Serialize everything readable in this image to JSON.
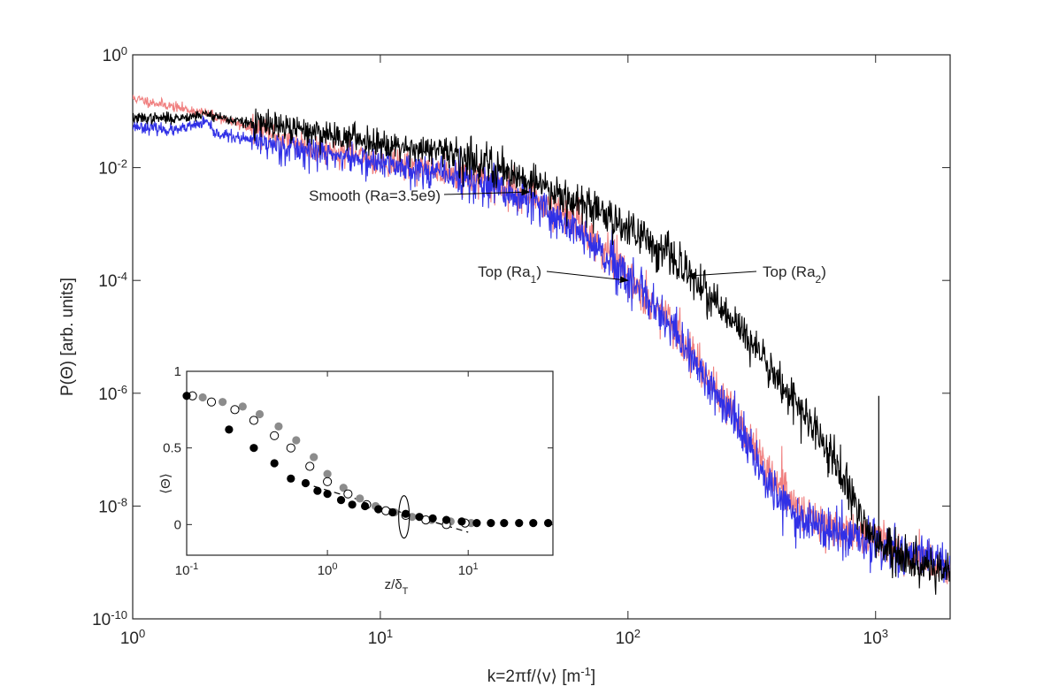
{
  "chart_data": [
    {
      "type": "line",
      "x_scale": "log",
      "y_scale": "log",
      "xlim": [
        1,
        2000
      ],
      "ylim": [
        1e-10,
        1
      ],
      "xlabel": "k=2πf/⟨v⟩ [m",
      "xlabel_sup": "-1",
      "xlabel_tail": "]",
      "ylabel": "P(Θ) [arb. units]",
      "x_ticks": [
        {
          "value": 1,
          "base": "10",
          "exp": "0"
        },
        {
          "value": 10,
          "base": "10",
          "exp": "1"
        },
        {
          "value": 100,
          "base": "10",
          "exp": "2"
        },
        {
          "value": 1000,
          "base": "10",
          "exp": "3"
        }
      ],
      "y_ticks": [
        {
          "value": 1e-10,
          "base": "10",
          "exp": "-10"
        },
        {
          "value": 1e-08,
          "base": "10",
          "exp": "-8"
        },
        {
          "value": 1e-06,
          "base": "10",
          "exp": "-6"
        },
        {
          "value": 0.0001,
          "base": "10",
          "exp": "-4"
        },
        {
          "value": 0.01,
          "base": "10",
          "exp": "-2"
        },
        {
          "value": 1,
          "base": "10",
          "exp": "0"
        }
      ],
      "series": [
        {
          "name": "Smooth (Ra=3.5e9)",
          "color": "#f08080",
          "noise": 0.13,
          "seed": 11,
          "points": [
            [
              1,
              0.17
            ],
            [
              2,
              0.09
            ],
            [
              3,
              0.05
            ],
            [
              5,
              0.025
            ],
            [
              10,
              0.013
            ],
            [
              15,
              0.01
            ],
            [
              20,
              0.0075
            ],
            [
              30,
              0.005
            ],
            [
              40,
              0.0032
            ],
            [
              60,
              0.0013
            ],
            [
              100,
              0.00012
            ],
            [
              150,
              1.6e-05
            ],
            [
              200,
              2.8e-06
            ],
            [
              300,
              2e-07
            ],
            [
              400,
              2.4e-08
            ],
            [
              500,
              8e-09
            ],
            [
              600,
              5e-09
            ],
            [
              800,
              3.4e-09
            ],
            [
              1000,
              2.4e-09
            ],
            [
              1300,
              1.5e-09
            ],
            [
              2000,
              8e-10
            ]
          ]
        },
        {
          "name": "Top (Ra₁)",
          "color": "#3030e6",
          "noise": 0.15,
          "seed": 23,
          "points": [
            [
              1,
              0.055
            ],
            [
              1.5,
              0.045
            ],
            [
              2,
              0.065
            ],
            [
              2.1,
              0.042
            ],
            [
              3,
              0.03
            ],
            [
              5,
              0.02
            ],
            [
              10,
              0.012
            ],
            [
              15,
              0.009
            ],
            [
              20,
              0.007
            ],
            [
              30,
              0.004
            ],
            [
              40,
              0.0025
            ],
            [
              60,
              0.0009
            ],
            [
              100,
              0.0001
            ],
            [
              150,
              1.4e-05
            ],
            [
              200,
              2.2e-06
            ],
            [
              300,
              1.5e-07
            ],
            [
              400,
              1.5e-08
            ],
            [
              500,
              6e-09
            ],
            [
              600,
              4e-09
            ],
            [
              800,
              2.7e-09
            ],
            [
              1000,
              2e-09
            ],
            [
              1300,
              1.4e-09
            ],
            [
              2000,
              1e-09
            ]
          ]
        },
        {
          "name": "Top (Ra₂)",
          "color": "#000000",
          "noise": 0.14,
          "seed": 37,
          "points": [
            [
              1,
              0.075
            ],
            [
              1.5,
              0.075
            ],
            [
              2,
              0.09
            ],
            [
              2.5,
              0.07
            ],
            [
              3,
              0.06
            ],
            [
              5,
              0.045
            ],
            [
              10,
              0.028
            ],
            [
              20,
              0.017
            ],
            [
              30,
              0.01
            ],
            [
              50,
              0.004
            ],
            [
              80,
              0.0015
            ],
            [
              100,
              0.0009
            ],
            [
              150,
              0.00025
            ],
            [
              200,
              7e-05
            ],
            [
              300,
              1e-05
            ],
            [
              400,
              2e-06
            ],
            [
              500,
              5e-07
            ],
            [
              700,
              5e-08
            ],
            [
              800,
              1.4e-08
            ],
            [
              900,
              5e-09
            ],
            [
              1000,
              2.6e-09
            ],
            [
              1100,
              1.8e-09
            ],
            [
              1300,
              1.2e-09
            ],
            [
              1600,
              8.5e-10
            ],
            [
              2000,
              7e-10
            ]
          ]
        }
      ],
      "spike": {
        "x": 1030,
        "y_low": 1.5e-09,
        "y_high": 9e-07
      },
      "annotations": [
        {
          "label": "Smooth (Ra=3.5e9)",
          "sub": "",
          "tail": "",
          "target_x": 40,
          "target_y": 0.0032
        },
        {
          "label": "Top (Ra",
          "sub": "1",
          "tail": ")",
          "target_x": 100,
          "target_y": 0.0001
        },
        {
          "label": "Top (Ra",
          "sub": "2",
          "tail": ")",
          "target_x": 175,
          "target_y": 0.00012
        }
      ]
    },
    {
      "type": "scatter",
      "x_scale": "log",
      "xlim": [
        0.1,
        40
      ],
      "ylim": [
        -0.2,
        1
      ],
      "xlabel": "z/δ",
      "xlabel_sub": "T",
      "ylabel": "⟨Θ⟩",
      "x_ticks": [
        {
          "value": 0.1,
          "base": "10",
          "exp": "-1"
        },
        {
          "value": 1,
          "base": "10",
          "exp": "0"
        },
        {
          "value": 10,
          "base": "10",
          "exp": "1"
        }
      ],
      "y_ticks": [
        {
          "value": 0,
          "label": "0"
        },
        {
          "value": 0.5,
          "label": "0.5"
        },
        {
          "value": 1,
          "label": "1"
        }
      ],
      "series": [
        {
          "name": "gray-filled",
          "style": "filled",
          "color": "#8c8c8c",
          "x": [
            0.13,
            0.18,
            0.25,
            0.33,
            0.45,
            0.6,
            0.8,
            1.0,
            1.3,
            1.7,
            2.2,
            3.0,
            4.0,
            5.5,
            7.5,
            10.5
          ],
          "y": [
            0.83,
            0.8,
            0.77,
            0.72,
            0.64,
            0.55,
            0.44,
            0.33,
            0.24,
            0.17,
            0.12,
            0.08,
            0.05,
            0.03,
            0.02,
            0.01
          ]
        },
        {
          "name": "open",
          "style": "open",
          "color": "#000000",
          "x": [
            0.11,
            0.15,
            0.22,
            0.3,
            0.42,
            0.55,
            0.75,
            1.0,
            1.4,
            1.9,
            2.6,
            3.6,
            5.0,
            7.0,
            9.5
          ],
          "y": [
            0.84,
            0.8,
            0.75,
            0.68,
            0.58,
            0.5,
            0.38,
            0.28,
            0.2,
            0.13,
            0.09,
            0.06,
            0.03,
            0.0,
            0.01
          ]
        },
        {
          "name": "black-filled",
          "style": "filled",
          "color": "#000000",
          "x": [
            0.1,
            0.2,
            0.3,
            0.42,
            0.55,
            0.7,
            0.85,
            1.0,
            1.25,
            1.5,
            1.85,
            2.3,
            2.9,
            3.6,
            4.5,
            5.6,
            7.0,
            9.0,
            11.5,
            14.5,
            18,
            23,
            29,
            37
          ],
          "y": [
            0.84,
            0.62,
            0.5,
            0.4,
            0.3,
            0.27,
            0.22,
            0.2,
            0.16,
            0.13,
            0.12,
            0.1,
            0.08,
            0.07,
            0.05,
            0.04,
            0.03,
            0.02,
            0.01,
            0.01,
            0.01,
            0.01,
            0.01,
            0.01
          ]
        }
      ],
      "fit_line": {
        "x": [
          0.8,
          10
        ],
        "y": [
          0.25,
          -0.05
        ]
      },
      "ellipse": {
        "x": 3.5,
        "y": 0.05,
        "rx_dec": 0.03,
        "ry": 0.12
      }
    }
  ]
}
